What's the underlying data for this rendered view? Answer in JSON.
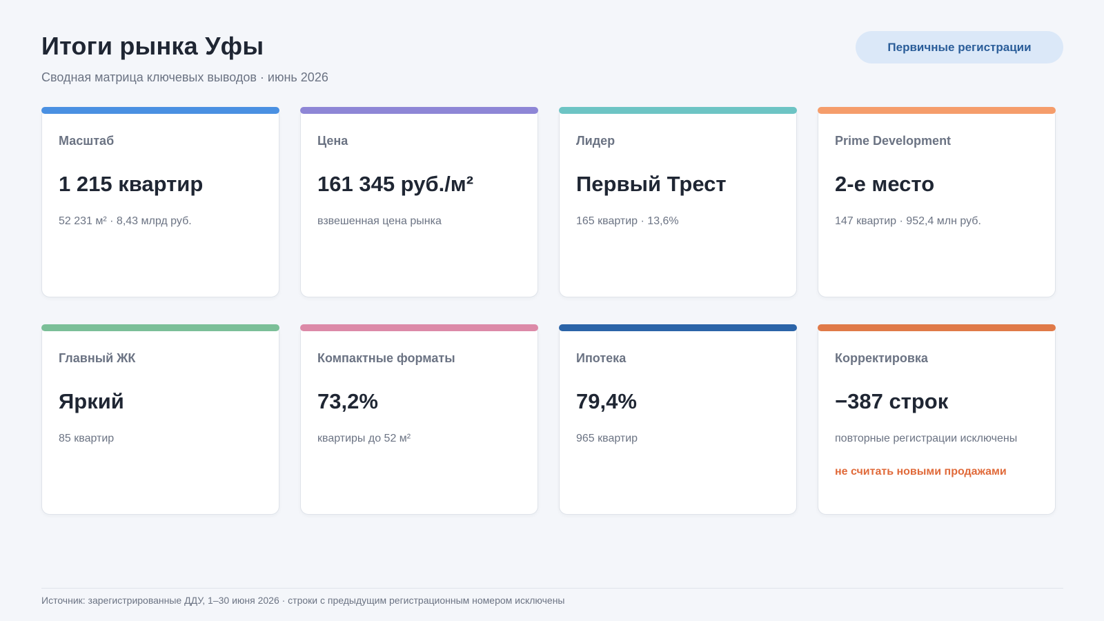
{
  "header": {
    "title": "Итоги рынка Уфы",
    "subtitle": "Сводная матрица ключевых выводов · июнь 2026",
    "badge": "Первичные регистрации"
  },
  "cards": [
    {
      "label": "Масштаб",
      "value": "1 215 квартир",
      "note": "52 231 м² · 8,43 млрд руб.",
      "accent": "#4a90e2"
    },
    {
      "label": "Цена",
      "value": "161 345 руб./м²",
      "note": "взвешенная цена рынка",
      "accent": "#8e86d6"
    },
    {
      "label": "Лидер",
      "value": "Первый Трест",
      "note": "165 квартир · 13,6%",
      "accent": "#6dc4c4"
    },
    {
      "label": "Prime Development",
      "value": "2-е место",
      "note": "147 квартир · 952,4 млн руб.",
      "accent": "#f59d6b"
    },
    {
      "label": "Главный ЖК",
      "value": "Яркий",
      "note": "85 квартир",
      "accent": "#7bbf98"
    },
    {
      "label": "Компактные форматы",
      "value": "73,2%",
      "note": "квартиры до 52 м²",
      "accent": "#dc8aa8"
    },
    {
      "label": "Ипотека",
      "value": "79,4%",
      "note": "965 квартир",
      "accent": "#2b64a8"
    },
    {
      "label": "Корректировка",
      "value": "−387 строк",
      "note": "повторные регистрации исключены",
      "warning": "не считать новыми продажами",
      "accent": "#e07a48"
    }
  ],
  "footer": {
    "source": "Источник: зарегистрированные ДДУ, 1–30 июня 2026 · строки с предыдущим регистрационным номером исключены"
  },
  "colors": {
    "background": "#f4f6fa",
    "text": "#1f2633",
    "muted": "#6b7383",
    "badge_bg": "#dbe8f8",
    "badge_text": "#2a5d99",
    "warning": "#e06a3a"
  }
}
